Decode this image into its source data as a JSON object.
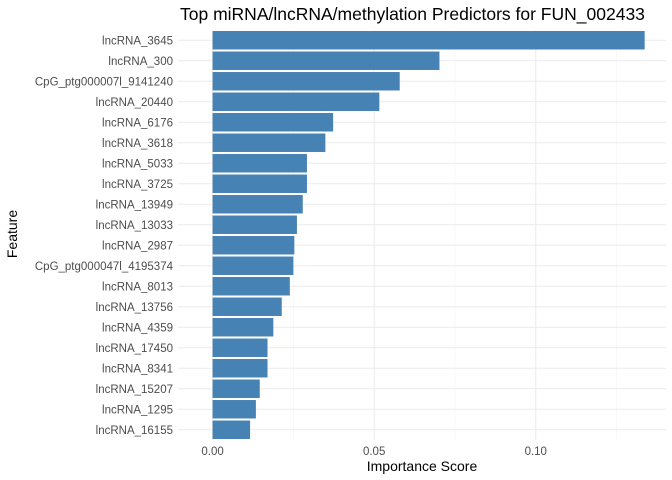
{
  "chart_data": {
    "type": "bar",
    "orientation": "horizontal",
    "title": "Top miRNA/lncRNA/methylation Predictors for FUN_002433",
    "xlabel": "Importance Score",
    "ylabel": "Feature",
    "xlim": [
      -0.0107,
      0.1403
    ],
    "xticks": [
      0.0,
      0.05,
      0.1
    ],
    "xtick_labels": [
      "0.00",
      "0.05",
      "0.10"
    ],
    "grid": true,
    "bar_color": "#4682B4",
    "categories": [
      "lncRNA_3645",
      "lncRNA_300",
      "CpG_ptg000007l_9141240",
      "lncRNA_20440",
      "lncRNA_6176",
      "lncRNA_3618",
      "lncRNA_5033",
      "lncRNA_3725",
      "lncRNA_13949",
      "lncRNA_13033",
      "lncRNA_2987",
      "CpG_ptg000047l_4195374",
      "lncRNA_8013",
      "lncRNA_13756",
      "lncRNA_4359",
      "lncRNA_17450",
      "lncRNA_8341",
      "lncRNA_15207",
      "lncRNA_1295",
      "lncRNA_16155"
    ],
    "values": [
      0.1337,
      0.0702,
      0.0579,
      0.0516,
      0.0373,
      0.0349,
      0.0292,
      0.0292,
      0.0279,
      0.0261,
      0.0253,
      0.025,
      0.0239,
      0.0214,
      0.0188,
      0.017,
      0.017,
      0.0146,
      0.0134,
      0.0116
    ]
  }
}
